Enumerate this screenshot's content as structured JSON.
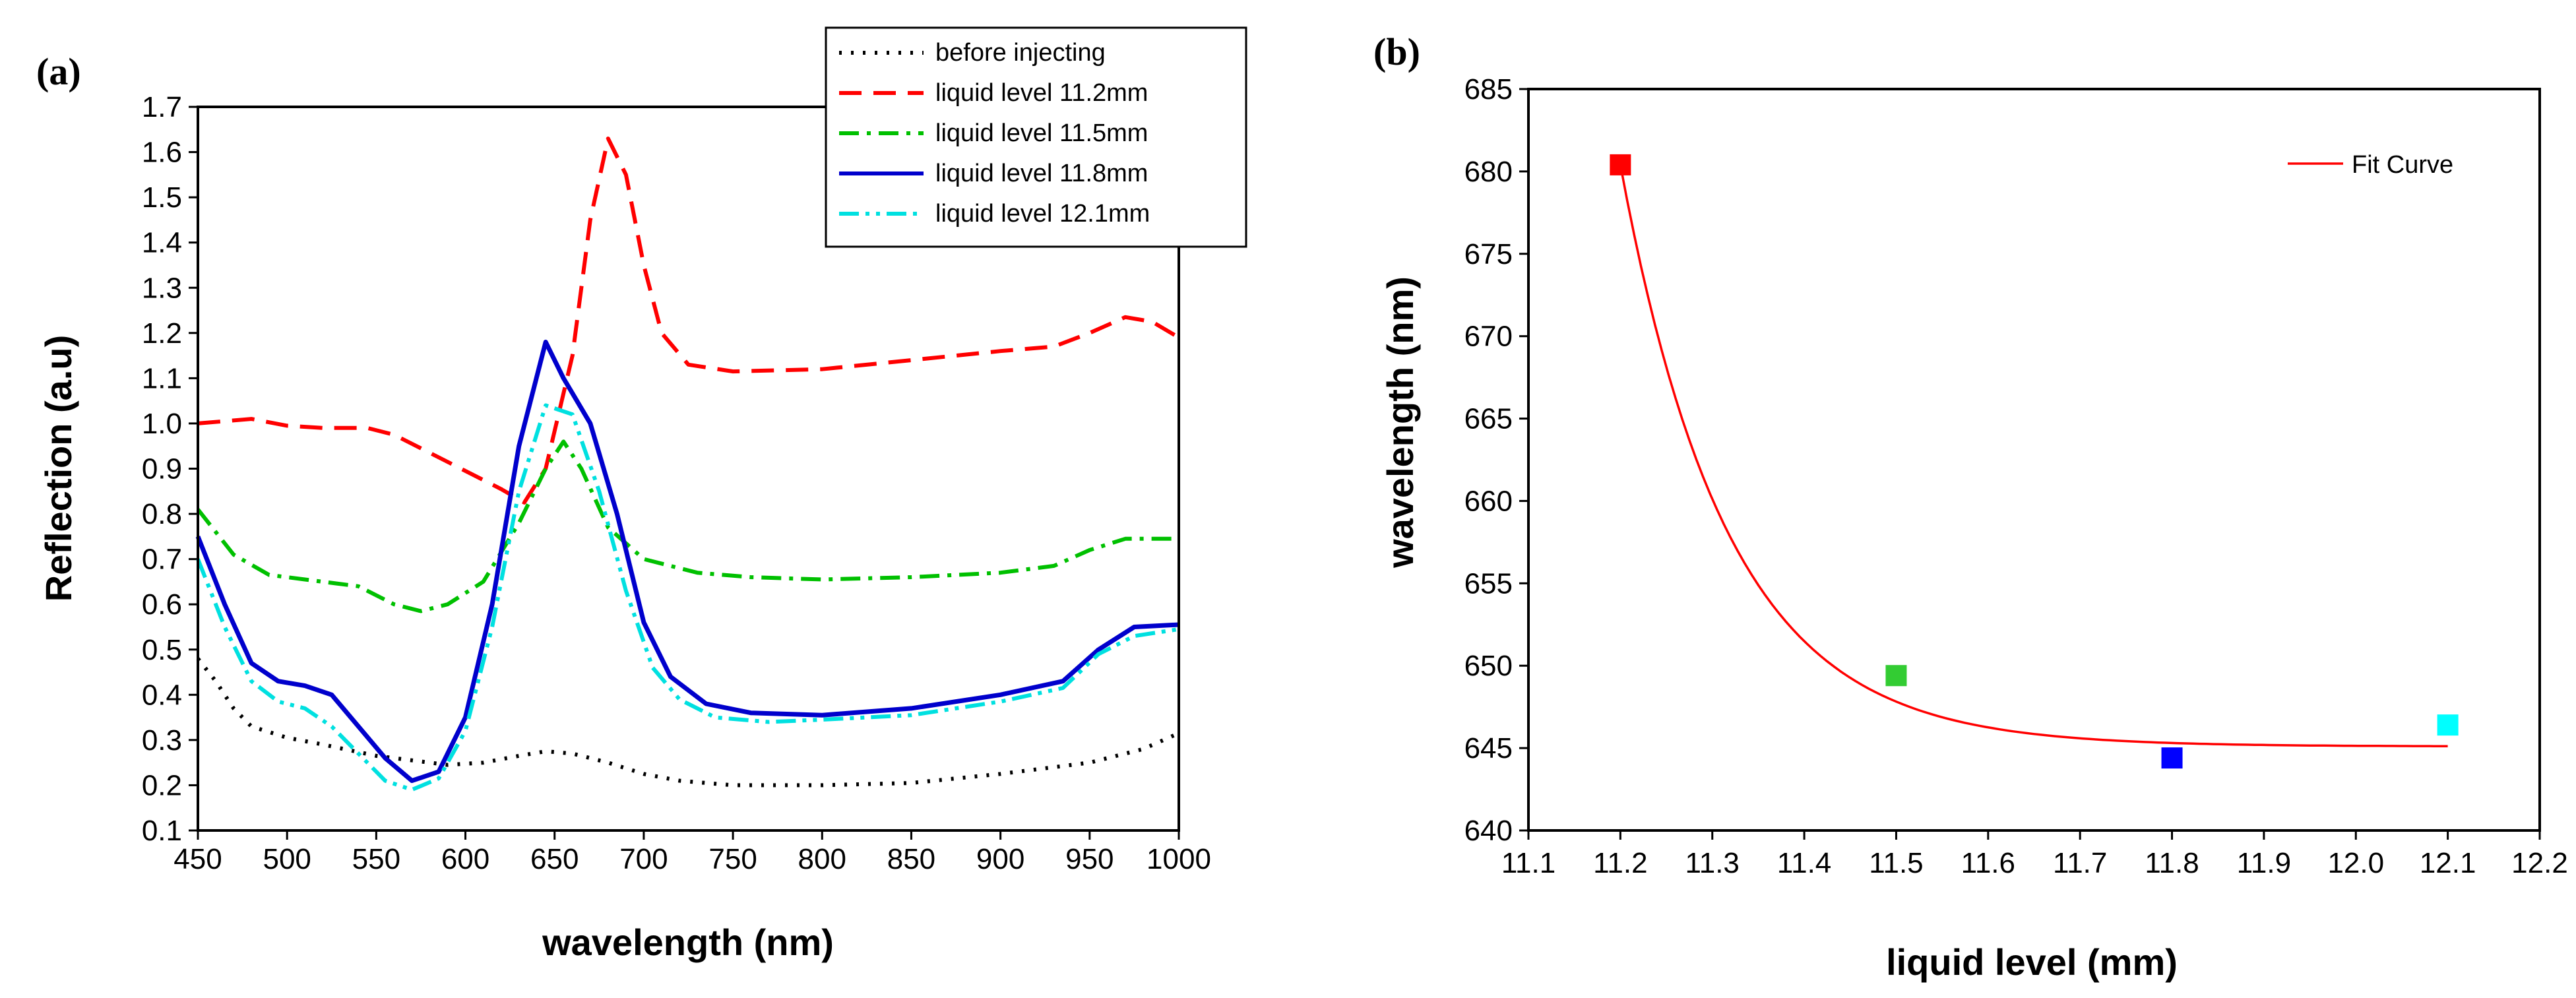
{
  "figure": {
    "panel_a_label": "(a)",
    "panel_b_label": "(b)"
  },
  "chart_data": [
    {
      "type": "line",
      "title": "",
      "xlabel": "wavelength (nm)",
      "ylabel": "Reflection (a.u)",
      "xlim": [
        450,
        1000
      ],
      "ylim": [
        0.1,
        1.7
      ],
      "xticks": [
        450,
        500,
        550,
        600,
        650,
        700,
        750,
        800,
        850,
        900,
        950,
        1000
      ],
      "yticks": [
        "0.1",
        "0.2",
        "0.3",
        "0.4",
        "0.5",
        "0.6",
        "0.7",
        "0.8",
        "0.9",
        "1.0",
        "1.1",
        "1.2",
        "1.3",
        "1.4",
        "1.5",
        "1.6",
        "1.7"
      ],
      "legend_position": "top-right",
      "series": [
        {
          "name": "before injecting",
          "color": "#000000",
          "dash": "dot",
          "points": [
            [
              450,
              0.48
            ],
            [
              460,
              0.43
            ],
            [
              470,
              0.37
            ],
            [
              480,
              0.33
            ],
            [
              500,
              0.305
            ],
            [
              520,
              0.29
            ],
            [
              550,
              0.265
            ],
            [
              570,
              0.255
            ],
            [
              590,
              0.245
            ],
            [
              610,
              0.25
            ],
            [
              630,
              0.265
            ],
            [
              645,
              0.275
            ],
            [
              660,
              0.27
            ],
            [
              680,
              0.25
            ],
            [
              700,
              0.225
            ],
            [
              720,
              0.21
            ],
            [
              750,
              0.2
            ],
            [
              800,
              0.2
            ],
            [
              850,
              0.205
            ],
            [
              900,
              0.225
            ],
            [
              950,
              0.25
            ],
            [
              980,
              0.28
            ],
            [
              1000,
              0.315
            ]
          ]
        },
        {
          "name": "liquid level 11.2mm",
          "color": "#ff0000",
          "dash": "dash",
          "points": [
            [
              450,
              1.0
            ],
            [
              480,
              1.01
            ],
            [
              500,
              0.995
            ],
            [
              520,
              0.99
            ],
            [
              545,
              0.99
            ],
            [
              560,
              0.975
            ],
            [
              580,
              0.935
            ],
            [
              600,
              0.895
            ],
            [
              620,
              0.855
            ],
            [
              633,
              0.825
            ],
            [
              645,
              0.9
            ],
            [
              660,
              1.15
            ],
            [
              670,
              1.45
            ],
            [
              680,
              1.63
            ],
            [
              690,
              1.55
            ],
            [
              700,
              1.35
            ],
            [
              710,
              1.2
            ],
            [
              725,
              1.13
            ],
            [
              750,
              1.115
            ],
            [
              800,
              1.12
            ],
            [
              850,
              1.14
            ],
            [
              900,
              1.16
            ],
            [
              930,
              1.17
            ],
            [
              950,
              1.2
            ],
            [
              970,
              1.235
            ],
            [
              985,
              1.225
            ],
            [
              1000,
              1.19
            ]
          ]
        },
        {
          "name": "liquid level 11.5mm",
          "color": "#00c000",
          "dash": "dashdot",
          "points": [
            [
              450,
              0.81
            ],
            [
              470,
              0.71
            ],
            [
              490,
              0.665
            ],
            [
              510,
              0.655
            ],
            [
              540,
              0.64
            ],
            [
              560,
              0.6
            ],
            [
              575,
              0.585
            ],
            [
              590,
              0.6
            ],
            [
              610,
              0.65
            ],
            [
              630,
              0.78
            ],
            [
              645,
              0.9
            ],
            [
              655,
              0.96
            ],
            [
              665,
              0.9
            ],
            [
              680,
              0.77
            ],
            [
              700,
              0.7
            ],
            [
              730,
              0.67
            ],
            [
              760,
              0.66
            ],
            [
              800,
              0.655
            ],
            [
              850,
              0.66
            ],
            [
              900,
              0.67
            ],
            [
              930,
              0.685
            ],
            [
              950,
              0.72
            ],
            [
              970,
              0.745
            ],
            [
              1000,
              0.745
            ]
          ]
        },
        {
          "name": "liquid level 11.8mm",
          "color": "#0000cc",
          "dash": "solid",
          "points": [
            [
              450,
              0.75
            ],
            [
              465,
              0.6
            ],
            [
              480,
              0.47
            ],
            [
              495,
              0.43
            ],
            [
              510,
              0.42
            ],
            [
              525,
              0.4
            ],
            [
              540,
              0.33
            ],
            [
              555,
              0.26
            ],
            [
              570,
              0.21
            ],
            [
              585,
              0.23
            ],
            [
              600,
              0.35
            ],
            [
              615,
              0.6
            ],
            [
              630,
              0.95
            ],
            [
              645,
              1.18
            ],
            [
              655,
              1.1
            ],
            [
              670,
              1.0
            ],
            [
              685,
              0.8
            ],
            [
              700,
              0.56
            ],
            [
              715,
              0.44
            ],
            [
              735,
              0.38
            ],
            [
              760,
              0.36
            ],
            [
              800,
              0.355
            ],
            [
              850,
              0.37
            ],
            [
              900,
              0.4
            ],
            [
              935,
              0.43
            ],
            [
              955,
              0.5
            ],
            [
              975,
              0.55
            ],
            [
              1000,
              0.555
            ]
          ]
        },
        {
          "name": "liquid level 12.1mm",
          "color": "#00e0e0",
          "dash": "dashdotdot",
          "points": [
            [
              450,
              0.7
            ],
            [
              465,
              0.55
            ],
            [
              480,
              0.43
            ],
            [
              495,
              0.385
            ],
            [
              510,
              0.37
            ],
            [
              525,
              0.33
            ],
            [
              540,
              0.27
            ],
            [
              555,
              0.21
            ],
            [
              570,
              0.19
            ],
            [
              585,
              0.215
            ],
            [
              600,
              0.32
            ],
            [
              615,
              0.55
            ],
            [
              630,
              0.85
            ],
            [
              645,
              1.04
            ],
            [
              660,
              1.02
            ],
            [
              675,
              0.85
            ],
            [
              690,
              0.63
            ],
            [
              705,
              0.46
            ],
            [
              720,
              0.39
            ],
            [
              740,
              0.35
            ],
            [
              770,
              0.34
            ],
            [
              800,
              0.345
            ],
            [
              850,
              0.355
            ],
            [
              900,
              0.385
            ],
            [
              935,
              0.415
            ],
            [
              955,
              0.49
            ],
            [
              975,
              0.53
            ],
            [
              1000,
              0.545
            ]
          ]
        }
      ]
    },
    {
      "type": "scatter",
      "title": "",
      "xlabel": "liquid level (mm)",
      "ylabel": "wavelength (nm)",
      "xlim": [
        11.1,
        12.2
      ],
      "ylim": [
        640,
        685
      ],
      "xticks": [
        "11.1",
        "11.2",
        "11.3",
        "11.4",
        "11.5",
        "11.6",
        "11.7",
        "11.8",
        "11.9",
        "12.0",
        "12.1",
        "12.2"
      ],
      "yticks": [
        "640",
        "645",
        "650",
        "655",
        "660",
        "665",
        "670",
        "675",
        "680",
        "685"
      ],
      "legend_position": "top-right",
      "points": [
        {
          "x": 11.2,
          "y": 680.4,
          "color": "#ff0000"
        },
        {
          "x": 11.5,
          "y": 649.4,
          "color": "#33cc33"
        },
        {
          "x": 11.8,
          "y": 644.4,
          "color": "#0000ff"
        },
        {
          "x": 12.1,
          "y": 646.4,
          "color": "#00ffff"
        }
      ],
      "fit": {
        "name": "Fit Curve",
        "color": "#ff0000",
        "model": "y = y0 + A*exp(-(x - 11.2)/t)",
        "y0": 645.1,
        "A": 35.3,
        "t": 0.117,
        "x_range": [
          11.2,
          12.1
        ]
      }
    }
  ]
}
